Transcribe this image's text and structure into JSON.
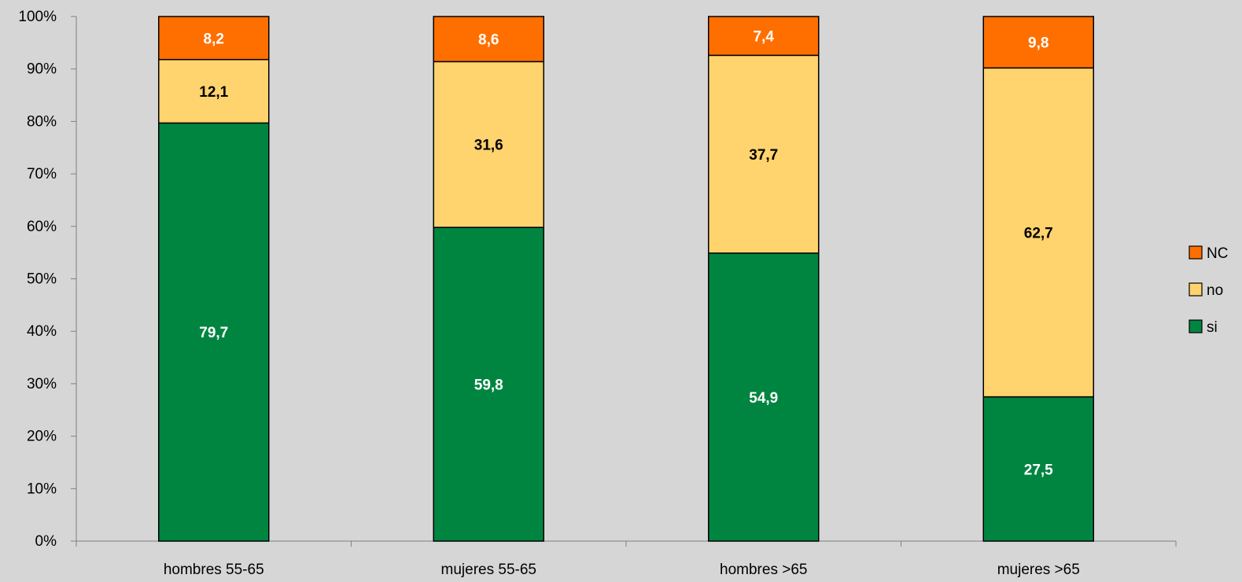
{
  "chart_data": {
    "type": "bar",
    "stacked": true,
    "percent_stacked": true,
    "categories": [
      "hombres 55-65",
      "mujeres 55-65",
      "hombres >65",
      "mujeres >65"
    ],
    "series": [
      {
        "name": "si",
        "values": [
          79.7,
          59.8,
          54.9,
          27.5
        ],
        "labels": [
          "79,7",
          "59,8",
          "54,9",
          "27,5"
        ],
        "color": "#008541",
        "label_color": "#ffffff"
      },
      {
        "name": "no",
        "values": [
          12.1,
          31.6,
          37.7,
          62.7
        ],
        "labels": [
          "12,1",
          "31,6",
          "37,7",
          "62,7"
        ],
        "color": "#ffd36e",
        "label_color": "#000000"
      },
      {
        "name": "NC",
        "values": [
          8.2,
          8.6,
          7.4,
          9.8
        ],
        "labels": [
          "8,2",
          "8,6",
          "7,4",
          "9,8"
        ],
        "color": "#ff6f00",
        "label_color": "#ffffff"
      }
    ],
    "y_ticks": [
      "0%",
      "10%",
      "20%",
      "30%",
      "40%",
      "50%",
      "60%",
      "70%",
      "80%",
      "90%",
      "100%"
    ],
    "ylim": [
      0,
      100
    ],
    "title": "",
    "xlabel": "",
    "ylabel": "",
    "legend_position": "right",
    "legend_order": [
      "NC",
      "no",
      "si"
    ],
    "grid": false,
    "background_color": "#d6d6d6"
  }
}
